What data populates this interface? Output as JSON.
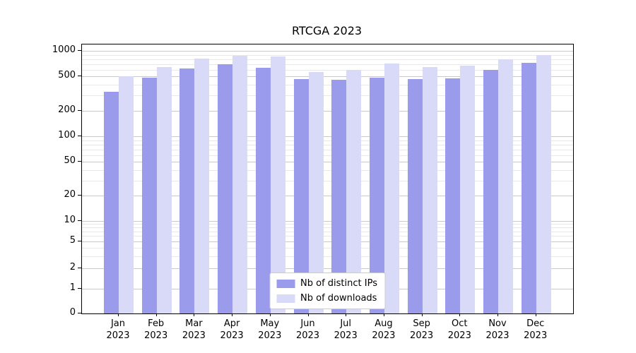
{
  "title": "RTCGA 2023",
  "chart_data": {
    "type": "bar",
    "title": "RTCGA 2023",
    "categories": [
      "Jan 2023",
      "Feb 2023",
      "Mar 2023",
      "Apr 2023",
      "May 2023",
      "Jun 2023",
      "Jul 2023",
      "Aug 2023",
      "Sep 2023",
      "Oct 2023",
      "Nov 2023",
      "Dec 2023"
    ],
    "series": [
      {
        "name": "Nb of distinct IPs",
        "color": "#9b9bec",
        "values": [
          330,
          490,
          620,
          700,
          630,
          470,
          460,
          490,
          470,
          480,
          600,
          730
        ]
      },
      {
        "name": "Nb of downloads",
        "color": "#d9d9f8",
        "values": [
          505,
          650,
          810,
          880,
          860,
          570,
          600,
          710,
          650,
          670,
          800,
          890
        ]
      }
    ],
    "yscale": "symlog",
    "yticks": [
      0,
      1,
      2,
      5,
      10,
      20,
      50,
      100,
      200,
      500,
      1000
    ],
    "ylim": [
      0,
      1000
    ],
    "xlabel": "",
    "ylabel": "",
    "grid": true,
    "legend_position": "lower center",
    "grid_color_major": "#c9c9c9",
    "grid_color_minor": "#e8e8e8"
  }
}
